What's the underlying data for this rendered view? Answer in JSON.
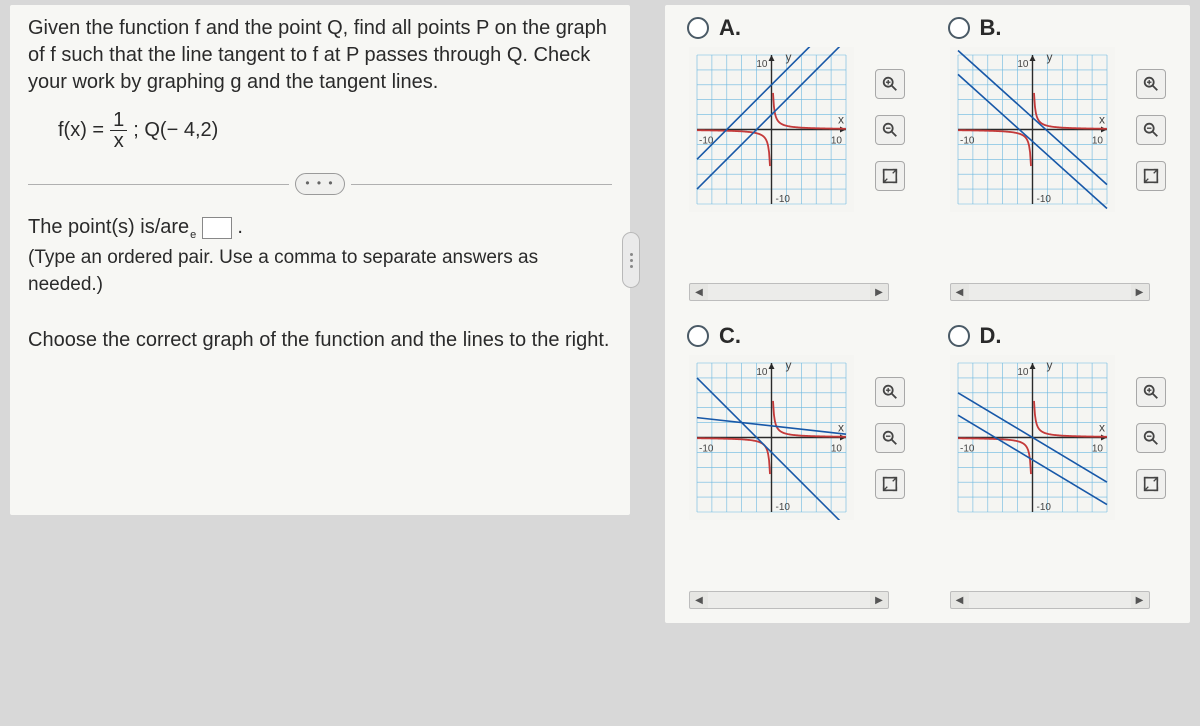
{
  "question": {
    "prompt": "Given the function f and the point Q, find all points P on the graph of f such that the line tangent to f at P passes through Q. Check your work by graphing g and the tangent lines.",
    "fx_lhs": "f(x) =",
    "frac_num": "1",
    "frac_den": "x",
    "q_point": "; Q(− 4,2)",
    "dots": "• • •",
    "answer_lead": "The point(s) is/are",
    "answer_trail": ".",
    "answer_hint": "(Type an ordered pair. Use a comma to separate answers as needed.)",
    "second": "Choose the correct graph of the function and the lines to the right."
  },
  "options": {
    "items": [
      {
        "letter": "A.",
        "grid_color": "#6bb8e0",
        "axis_color": "#2a2a2a",
        "curve_color": "#c43a3a",
        "line_color": "#1858a8",
        "xmin": -10,
        "xmax": 10,
        "ymin": -10,
        "ymax": 10,
        "tick": 10,
        "labels": {
          "x": "x",
          "y": "y",
          "n10": "-10",
          "p10": "10"
        },
        "curve_type": "xy1",
        "tangent_slopes": [
          1.0,
          1.0
        ],
        "tangent_intercepts": [
          6,
          2
        ]
      },
      {
        "letter": "B.",
        "grid_color": "#6bb8e0",
        "axis_color": "#2a2a2a",
        "curve_color": "#c43a3a",
        "line_color": "#1858a8",
        "xmin": -10,
        "xmax": 10,
        "ymin": -10,
        "ymax": 10,
        "tick": 10,
        "labels": {
          "x": "x",
          "y": "y",
          "n10": "-10",
          "p10": "10"
        },
        "curve_type": "xy1",
        "tangent_slopes": [
          -0.9,
          -0.9
        ],
        "tangent_intercepts": [
          -1.6,
          1.6
        ]
      },
      {
        "letter": "C.",
        "grid_color": "#6bb8e0",
        "axis_color": "#2a2a2a",
        "curve_color": "#c43a3a",
        "line_color": "#1858a8",
        "xmin": -10,
        "xmax": 10,
        "ymin": -10,
        "ymax": 10,
        "tick": 10,
        "labels": {
          "x": "x",
          "y": "y",
          "n10": "-10",
          "p10": "10"
        },
        "curve_type": "xy1",
        "tangent_slopes": [
          -1.0,
          -0.111
        ],
        "tangent_intercepts": [
          -2,
          1.56
        ]
      },
      {
        "letter": "D.",
        "grid_color": "#6bb8e0",
        "axis_color": "#2a2a2a",
        "curve_color": "#c43a3a",
        "line_color": "#1858a8",
        "xmin": -10,
        "xmax": 10,
        "ymin": -10,
        "ymax": 10,
        "tick": 10,
        "labels": {
          "x": "x",
          "y": "y",
          "n10": "-10",
          "p10": "10"
        },
        "curve_type": "xy1",
        "tangent_slopes": [
          -0.6,
          -0.6
        ],
        "tangent_intercepts": [
          -3,
          0
        ]
      }
    ]
  },
  "scroll_arrows": {
    "left": "◀",
    "right": "▶"
  }
}
